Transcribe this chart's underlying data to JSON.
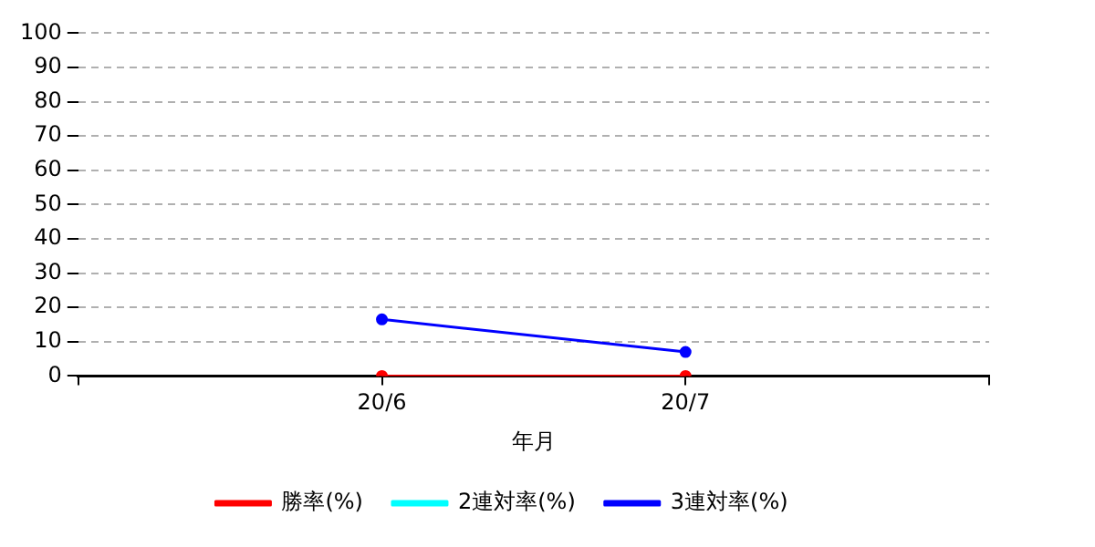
{
  "chart_data": {
    "type": "line",
    "xlabel": "年月",
    "categories": [
      "20/6",
      "20/7"
    ],
    "series": [
      {
        "name": "勝率(%)",
        "color": "#ff0000",
        "values": [
          0,
          0
        ]
      },
      {
        "name": "2連対率(%)",
        "color": "#00ffff",
        "values": [
          null,
          null
        ]
      },
      {
        "name": "3連対率(%)",
        "color": "#0000ff",
        "values": [
          16.5,
          7
        ]
      }
    ],
    "ylim": [
      0,
      100
    ],
    "yticks": [
      0,
      10,
      20,
      30,
      40,
      50,
      60,
      70,
      80,
      90,
      100
    ],
    "grid": "y",
    "legend": "bottom",
    "marker": "circle",
    "line_style": "solid"
  }
}
